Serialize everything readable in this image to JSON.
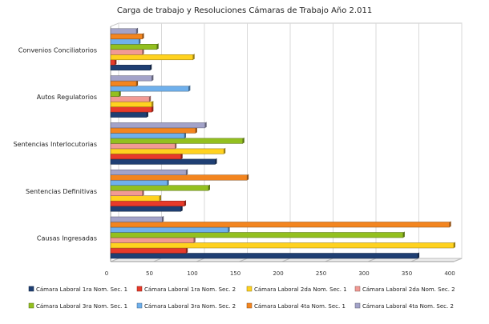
{
  "chart_data": {
    "type": "bar",
    "orientation": "horizontal",
    "title": "Carga de trabajo y Resoluciones Cámaras de Trabajo Año 2.011",
    "xlabel": "",
    "ylabel": "",
    "xlim": [
      0,
      400
    ],
    "x_ticks": [
      "0",
      "50",
      "100",
      "150",
      "200",
      "250",
      "300",
      "350",
      "400"
    ],
    "grid": true,
    "legend_position": "bottom",
    "categories": [
      "Convenios Conciliatorios",
      "Autos Regulatorios",
      "Sentencias Interlocutorias",
      "Sentencias Definitivas",
      "Causas Ingresadas"
    ],
    "series": [
      {
        "name": "Cámara Laboral 1ra Nom. Sec. 1",
        "color": "#1f3f73",
        "values": [
          46,
          42,
          122,
          82,
          358
        ]
      },
      {
        "name": "Cámara Laboral 1ra Nom. Sec. 2",
        "color": "#e83a2a",
        "values": [
          5,
          48,
          82,
          86,
          88
        ]
      },
      {
        "name": "Cámara Laboral 2da Nom. Sec. 1",
        "color": "#ffd21f",
        "values": [
          96,
          48,
          132,
          57,
          400
        ]
      },
      {
        "name": "Cámara Laboral 2da Nom. Sec. 2",
        "color": "#f29a94",
        "values": [
          37,
          45,
          75,
          37,
          97
        ]
      },
      {
        "name": "Cámara Laboral 3ra Nom. Sec. 1",
        "color": "#93c01f",
        "values": [
          54,
          10,
          154,
          114,
          341
        ]
      },
      {
        "name": "Cámara Laboral 3ra Nom. Sec. 2",
        "color": "#6fb0ec",
        "values": [
          33,
          91,
          86,
          66,
          137
        ]
      },
      {
        "name": "Cámara Laboral 4ta Nom. Sec. 1",
        "color": "#f3851f",
        "values": [
          37,
          30,
          99,
          159,
          395
        ]
      },
      {
        "name": "Cámara Laboral 4ta Nom. Sec. 2",
        "color": "#a3a3c9",
        "values": [
          30,
          48,
          110,
          88,
          60
        ]
      }
    ]
  }
}
